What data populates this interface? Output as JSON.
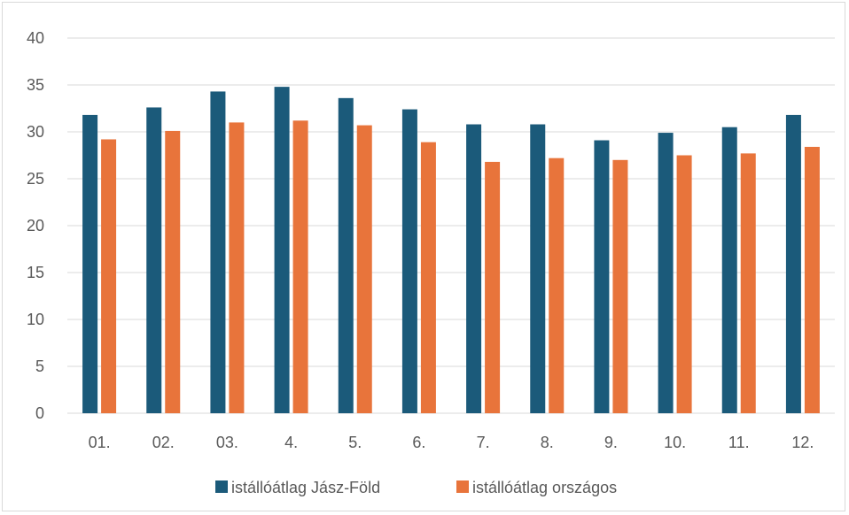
{
  "chart_data": {
    "type": "bar",
    "categories": [
      "01.",
      "02.",
      "03.",
      "4.",
      "5.",
      "6.",
      "7.",
      "8.",
      "9.",
      "10.",
      "11.",
      "12."
    ],
    "series": [
      {
        "name": "istállóátlag Jász-Föld",
        "color": "#1b5a7a",
        "values": [
          31.8,
          32.6,
          34.3,
          34.8,
          33.6,
          32.4,
          30.8,
          30.8,
          29.1,
          29.9,
          30.5,
          31.8
        ]
      },
      {
        "name": "istállóátlag országos",
        "color": "#e8743b",
        "values": [
          29.2,
          30.1,
          31.0,
          31.2,
          30.7,
          28.9,
          26.8,
          27.2,
          27.0,
          27.5,
          27.7,
          28.4
        ]
      }
    ],
    "ylim": [
      0,
      40
    ],
    "yticks": [
      0,
      5,
      10,
      15,
      20,
      25,
      30,
      35,
      40
    ],
    "title": "",
    "xlabel": "",
    "ylabel": "",
    "grid": true,
    "legend_position": "bottom"
  }
}
